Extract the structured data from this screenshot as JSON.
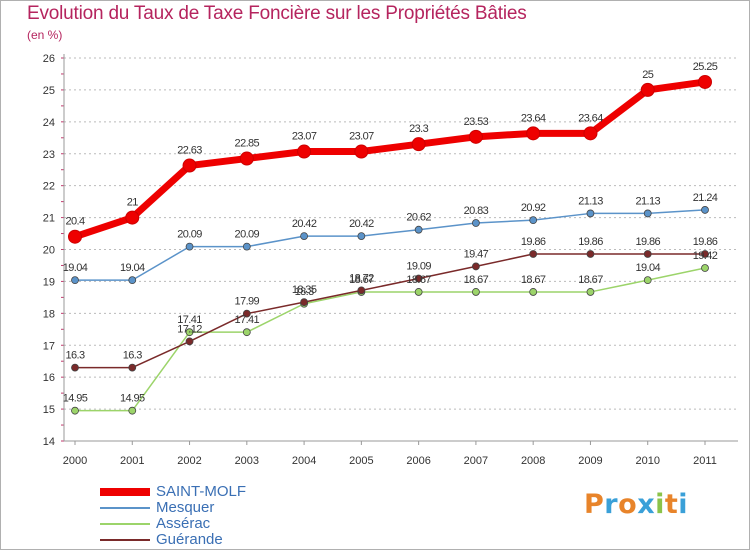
{
  "title": "Evolution du Taux de Taxe Foncière sur les Propriétés Bâties",
  "subtitle": "(en %)",
  "logo_text": "Proxiti",
  "colors": {
    "title": "#b5245e",
    "legend_text": "#3a6fb4",
    "axis_text": "#333333",
    "grid": "#bbbbbb"
  },
  "chart_data": {
    "type": "line",
    "title": "Evolution du Taux de Taxe Foncière sur les Propriétés Bâties",
    "ylabel": "(en %)",
    "xlabel": "",
    "x": [
      "2000",
      "2001",
      "2002",
      "2003",
      "2004",
      "2005",
      "2006",
      "2007",
      "2008",
      "2009",
      "2010",
      "2011"
    ],
    "ylim": [
      14,
      26
    ],
    "yticks": [
      "14",
      "15",
      "16",
      "17",
      "18",
      "19",
      "20",
      "21",
      "22",
      "23",
      "24",
      "25",
      "26"
    ],
    "grid": "horizontal dashed",
    "legend_position": "bottom-left",
    "series": [
      {
        "name": "SAINT-MOLF",
        "color": "#ee0000",
        "emphasis": true,
        "values": [
          20.4,
          21,
          22.63,
          22.85,
          23.07,
          23.07,
          23.3,
          23.53,
          23.64,
          23.64,
          25,
          25.25
        ],
        "labels": [
          "20.4",
          "21",
          "22.63",
          "22.85",
          "23.07",
          "23.07",
          "23.3",
          "23.53",
          "23.64",
          "23.64",
          "25",
          "25.25"
        ]
      },
      {
        "name": "Mesquer",
        "color": "#5b93c9",
        "values": [
          19.04,
          19.04,
          20.09,
          20.09,
          20.42,
          20.42,
          20.62,
          20.83,
          20.92,
          21.13,
          21.13,
          21.24
        ],
        "labels": [
          "19.04",
          "19.04",
          "20.09",
          "20.09",
          "20.42",
          "20.42",
          "20.62",
          "20.83",
          "20.92",
          "21.13",
          "21.13",
          "21.24"
        ]
      },
      {
        "name": "Assérac",
        "color": "#9cd46a",
        "values": [
          14.95,
          14.95,
          17.41,
          17.41,
          18.3,
          18.67,
          18.67,
          18.67,
          18.67,
          18.67,
          19.04,
          19.42
        ],
        "labels": [
          "14.95",
          "14.95",
          "17.41",
          "17.41",
          "18.3",
          "18.67",
          "18.67",
          "18.67",
          "18.67",
          "18.67",
          "19.04",
          "19.42"
        ]
      },
      {
        "name": "Guérande",
        "color": "#7a2a2a",
        "values": [
          16.3,
          16.3,
          17.12,
          17.99,
          18.35,
          18.72,
          19.09,
          19.47,
          19.86,
          19.86,
          19.86,
          19.86
        ],
        "labels": [
          "16.3",
          "16.3",
          "17.12",
          "17.99",
          "18.35",
          "18.72",
          "19.09",
          "19.47",
          "19.86",
          "19.86",
          "19.86",
          "19.86"
        ]
      }
    ]
  }
}
